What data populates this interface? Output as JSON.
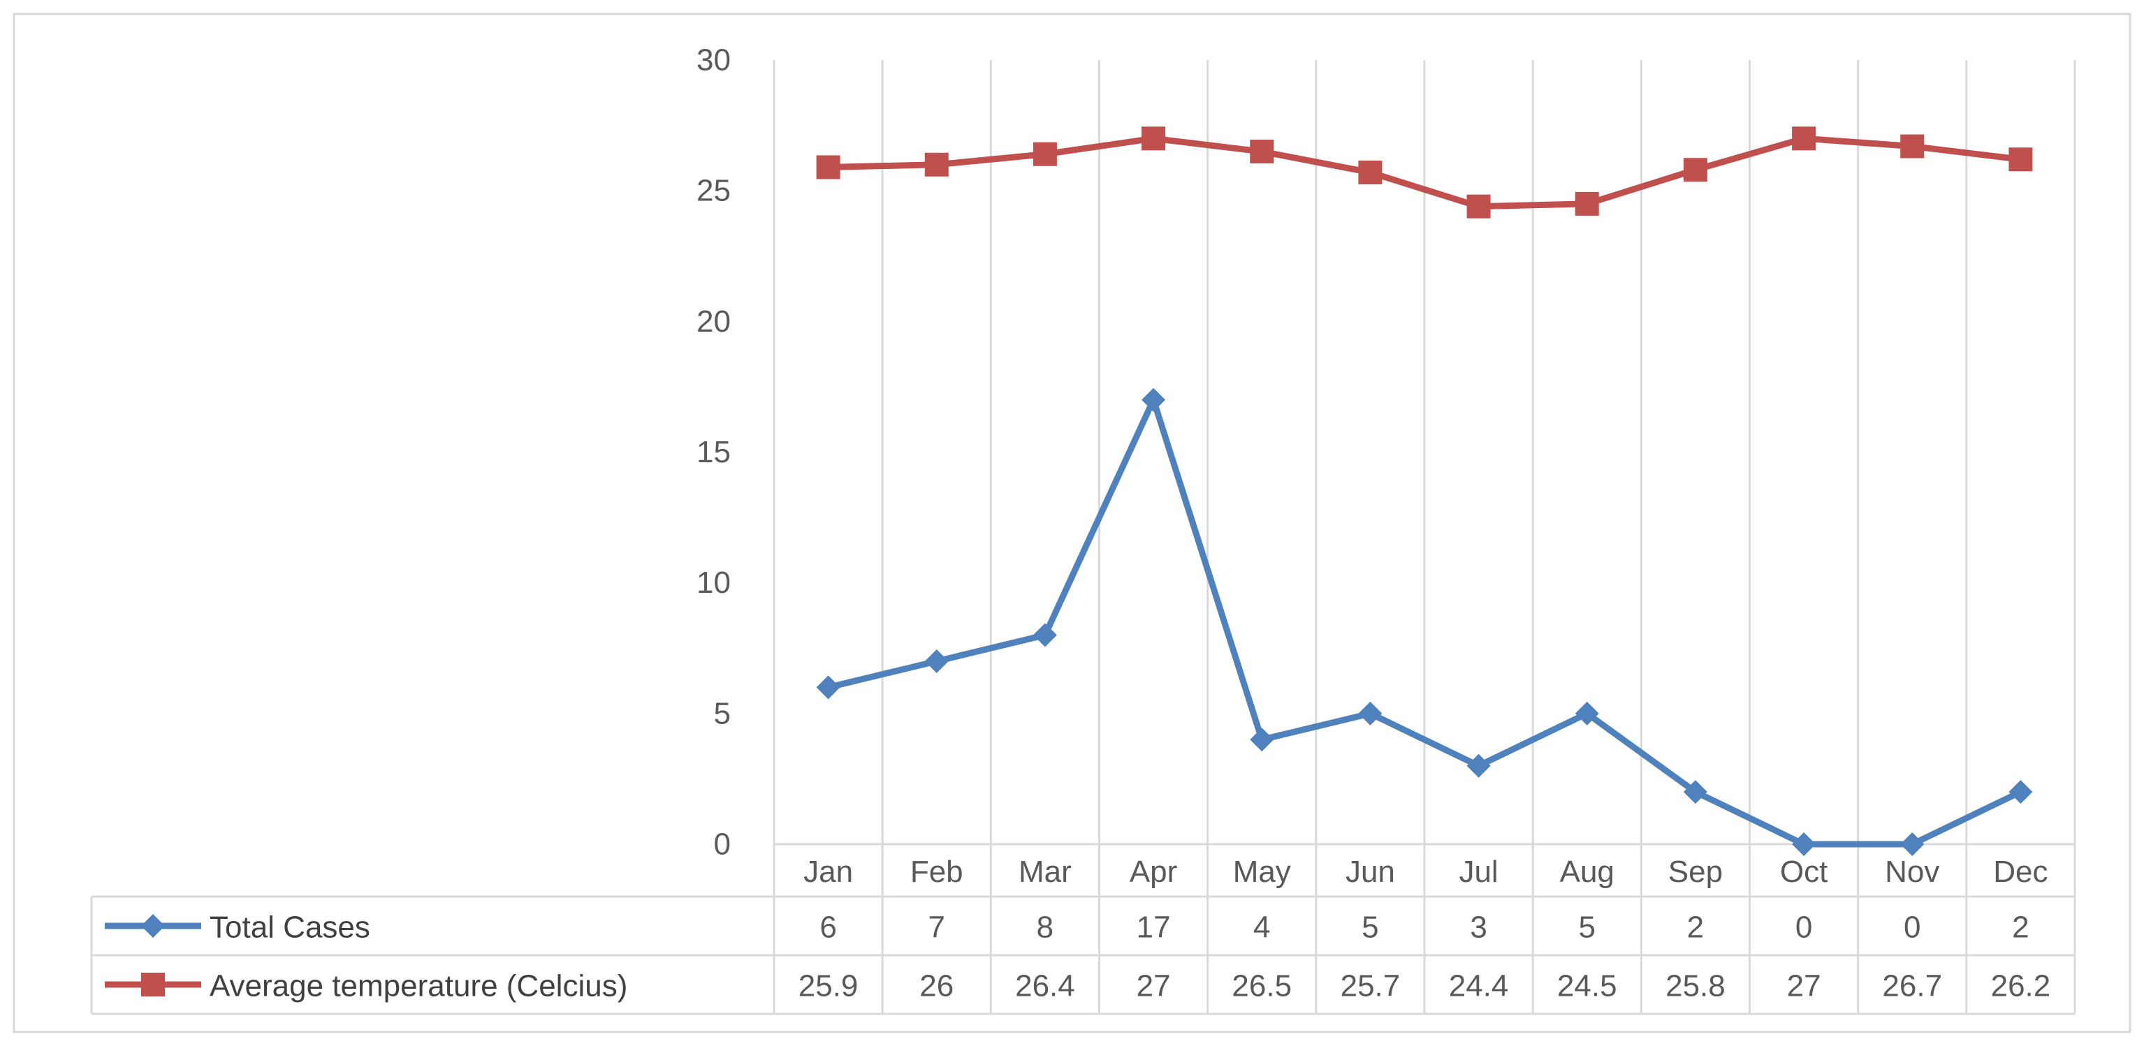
{
  "chart_data": {
    "type": "line",
    "title": "",
    "xlabel": "",
    "ylabel": "",
    "ylim": [
      0,
      30
    ],
    "yticks": [
      0,
      5,
      10,
      15,
      20,
      25,
      30
    ],
    "grid": "vertical",
    "legend": "data-table",
    "categories": [
      "Jan",
      "Feb",
      "Mar",
      "Apr",
      "May",
      "Jun",
      "Jul",
      "Aug",
      "Sep",
      "Oct",
      "Nov",
      "Dec"
    ],
    "series": [
      {
        "name": "Total Cases",
        "values": [
          6,
          7,
          8,
          17,
          4,
          5,
          3,
          5,
          2,
          0,
          0,
          2
        ],
        "display": [
          "6",
          "7",
          "8",
          "17",
          "4",
          "5",
          "3",
          "5",
          "2",
          "0",
          "0",
          "2"
        ],
        "color": "#4F81BD",
        "marker": "diamond"
      },
      {
        "name": "Average temperature (Celcius)",
        "values": [
          25.9,
          26,
          26.4,
          27,
          26.5,
          25.7,
          24.4,
          24.5,
          25.8,
          27,
          26.7,
          26.2
        ],
        "display": [
          "25.9",
          "26",
          "26.4",
          "27",
          "26.5",
          "25.7",
          "24.4",
          "24.5",
          "25.8",
          "27",
          "26.7",
          "26.2"
        ],
        "color": "#C0504D",
        "marker": "square"
      }
    ]
  }
}
